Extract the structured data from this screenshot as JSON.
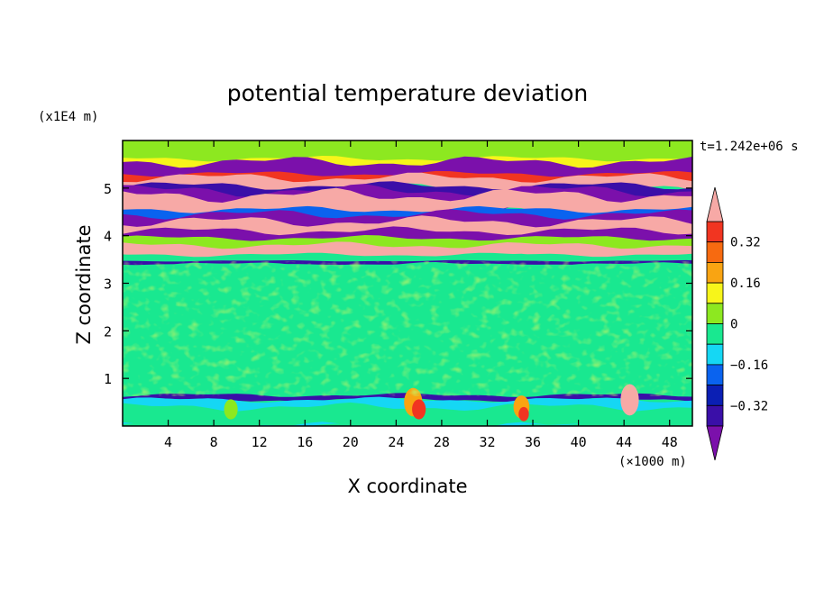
{
  "chart_data": {
    "type": "heatmap",
    "title": "potential temperature deviation",
    "xlabel": "X coordinate",
    "ylabel": "Z coordinate",
    "x_unit": "(×1000 m)",
    "y_unit": "(x1E4 m)",
    "time_label": "t=1.242e+06 s",
    "xlim": [
      0,
      50
    ],
    "ylim": [
      0,
      6
    ],
    "x_ticks": [
      "4",
      "8",
      "12",
      "16",
      "20",
      "24",
      "28",
      "32",
      "36",
      "40",
      "44",
      "48"
    ],
    "y_ticks": [
      "1",
      "2",
      "3",
      "4",
      "5"
    ],
    "colorbar": {
      "labels": [
        "0.32",
        "0.16",
        "0",
        "-0.16",
        "-0.32"
      ],
      "levels": [
        -0.4,
        -0.32,
        -0.24,
        -0.16,
        -0.08,
        0,
        0.08,
        0.16,
        0.24,
        0.32,
        0.4
      ],
      "colors": [
        "#7b10ab",
        "#3a0fa8",
        "#0b1fb4",
        "#0a63ef",
        "#15d7f4",
        "#19e890",
        "#8de820",
        "#f7f51a",
        "#f9a412",
        "#f76a10",
        "#f13521",
        "#f7a9a6"
      ]
    },
    "bands": [
      {
        "z_min": 0.0,
        "z_max": 0.6,
        "description": "mixed near-zero, cyan patches, warm orange/red plumes near x≈25-27 and x≈34-36"
      },
      {
        "z_min": 0.6,
        "z_max": 3.4,
        "description": "mostly green/light-green (≈0 to +0.08) noise"
      },
      {
        "z_min": 3.4,
        "z_max": 5.5,
        "description": "alternating layers of strong positive (pink) and strong negative (purple/dark blue)"
      },
      {
        "z_min": 5.5,
        "z_max": 6.0,
        "description": "green/light-green near zero"
      }
    ]
  }
}
